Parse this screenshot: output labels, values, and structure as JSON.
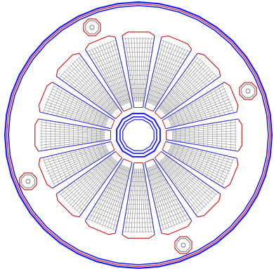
{
  "diagram": {
    "colors": {
      "background": "#ffffff",
      "outer_ring_blue": "#1a1aff",
      "outer_ring_red": "#e02020",
      "sector_outline": "#d42020",
      "divider_blue": "#2a2ad8",
      "lamination_gray": "#8a8a8a",
      "hub_blue": "#1a1aff",
      "bolt_red": "#d42020",
      "bolt_gray": "#777777"
    },
    "sector_count": 16,
    "lines_per_sector": 11,
    "mounting_holes": 4,
    "icons": [
      "outer-housing-ring",
      "lamination-sector",
      "center-hub",
      "mounting-bolt"
    ]
  }
}
